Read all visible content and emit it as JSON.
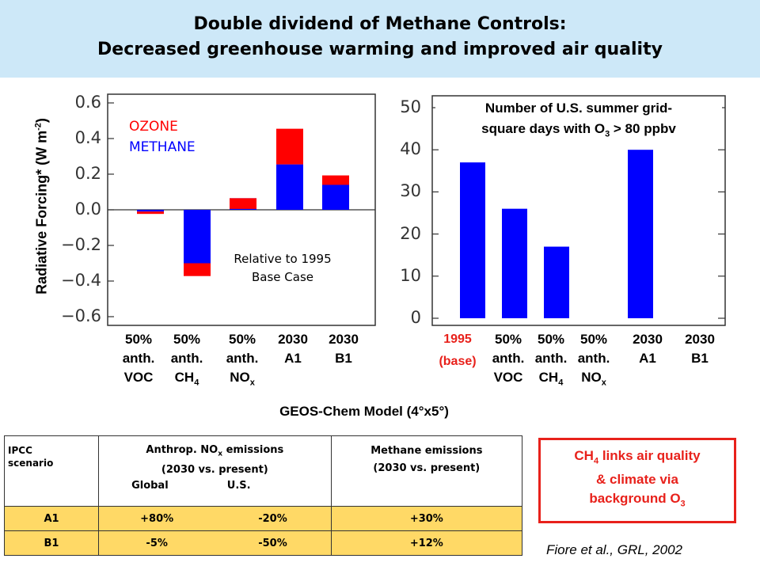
{
  "title": {
    "line1": "Double dividend of Methane Controls:",
    "line2": "Decreased greenhouse warming and improved air quality"
  },
  "colors": {
    "ozone": "#ff0000",
    "methane": "#0000ff",
    "band": "#cde8f8",
    "table_fill": "#ffd966",
    "callout": "#e8211b"
  },
  "chart_data": [
    {
      "type": "bar",
      "ylabel": "Radiative Forcing* (W m",
      "ylabel_sup": "-2",
      "ylabel_end": ")",
      "ylim": [
        -0.65,
        0.65
      ],
      "yticks": [
        "0.6",
        "0.4",
        "0.2",
        "0.0",
        "−0.2",
        "−0.4",
        "−0.6"
      ],
      "legend": [
        "OZONE",
        "METHANE"
      ],
      "annotation": [
        "Relative to 1995",
        "Base Case"
      ],
      "categories": [
        [
          "50%",
          "anth.",
          "VOC"
        ],
        [
          "50%",
          "anth.",
          "CH",
          "4"
        ],
        [
          "50%",
          "anth.",
          "NO",
          "x"
        ],
        [
          "2030",
          "A1"
        ],
        [
          "2030",
          "B1"
        ]
      ],
      "series": [
        {
          "name": "METHANE",
          "values": [
            -0.01,
            -0.3,
            0.065,
            0.255,
            0.14
          ]
        },
        {
          "name": "OZONE",
          "values": [
            -0.013,
            -0.072,
            -0.06,
            0.2,
            0.053
          ]
        }
      ]
    },
    {
      "type": "bar",
      "title": [
        "Number of U.S. summer grid-",
        "square days with O",
        "3",
        " > 80 ppbv"
      ],
      "ylim": [
        0,
        50
      ],
      "yticks": [
        "50",
        "40",
        "30",
        "20",
        "10",
        "0"
      ],
      "categories": [
        [
          "1995",
          "(base)"
        ],
        [
          "50%",
          "anth.",
          "VOC"
        ],
        [
          "50%",
          "anth.",
          "CH",
          "4"
        ],
        [
          "50%",
          "anth.",
          "NO",
          "x"
        ],
        [
          "2030",
          "A1"
        ],
        [
          "2030",
          "B1"
        ]
      ],
      "values": [
        37,
        26,
        17,
        0,
        40,
        0
      ]
    }
  ],
  "xlabel": "GEOS-Chem Model (4°x5°)",
  "table": {
    "col1": [
      "IPCC",
      "scenario"
    ],
    "col2": [
      "Anthrop. NO",
      "x",
      " emissions",
      "(2030 vs. present)",
      "Global",
      "U.S."
    ],
    "col3": [
      "Methane emissions",
      "(2030 vs. present)"
    ],
    "rows": [
      [
        "A1",
        "+80%",
        "-20%",
        "+30%"
      ],
      [
        "B1",
        "-5%",
        "-50%",
        "+12%"
      ]
    ]
  },
  "callout": [
    "CH",
    "4",
    " links air quality",
    "& climate via",
    "background O",
    "3"
  ],
  "citation": "Fiore et al., GRL, 2002"
}
